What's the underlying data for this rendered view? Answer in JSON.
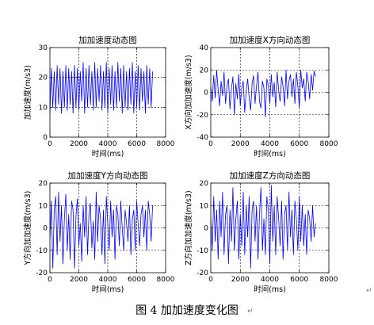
{
  "caption": "图 4  加加速度变化图",
  "return_mark": "↵",
  "chart_data": [
    {
      "type": "line",
      "title": "加加速度动态图",
      "xlabel": "时间(ms)",
      "ylabel": "加加速度(m/s3)",
      "xlim": [
        0,
        8000
      ],
      "ylim": [
        0,
        30
      ],
      "xticks": [
        0,
        2000,
        4000,
        6000,
        8000
      ],
      "yticks": [
        0,
        10,
        20,
        30
      ],
      "grid": true,
      "color": "#0000ff",
      "series": [
        {
          "x": [
            0,
            100,
            200,
            300,
            400,
            500,
            600,
            700,
            800,
            900,
            1000,
            1100,
            1200,
            1300,
            1400,
            1500,
            1600,
            1700,
            1800,
            1900,
            2000,
            2100,
            2200,
            2300,
            2400,
            2500,
            2600,
            2700,
            2800,
            2900,
            3000,
            3100,
            3200,
            3300,
            3400,
            3500,
            3600,
            3700,
            3800,
            3900,
            4000,
            4100,
            4200,
            4300,
            4400,
            4500,
            4600,
            4700,
            4800,
            4900,
            5000,
            5100,
            5200,
            5300,
            5400,
            5500,
            5600,
            5700,
            5800,
            5900,
            6000,
            6100,
            6200,
            6300,
            6400,
            6500,
            6600,
            6700,
            6800,
            6900,
            7000,
            7100
          ],
          "y": [
            8,
            23,
            10,
            22,
            9,
            24,
            11,
            23,
            8,
            22,
            10,
            24,
            9,
            23,
            11,
            22,
            8,
            24,
            10,
            23,
            9,
            22,
            12,
            25,
            8,
            23,
            10,
            24,
            11,
            22,
            9,
            25,
            10,
            23,
            12,
            24,
            9,
            22,
            10,
            25,
            8,
            23,
            11,
            24,
            9,
            22,
            10,
            25,
            12,
            23,
            8,
            24,
            10,
            22,
            9,
            23,
            11,
            25,
            8,
            22,
            10,
            24,
            9,
            23,
            12,
            22,
            8,
            24,
            11,
            23,
            10,
            22
          ]
        }
      ]
    },
    {
      "type": "line",
      "title": "加加速度X方向动态图",
      "xlabel": "时间(ms)",
      "ylabel": "X方向加加速度(m/s3)",
      "xlim": [
        0,
        8000
      ],
      "ylim": [
        -40,
        40
      ],
      "xticks": [
        0,
        2000,
        4000,
        6000,
        8000
      ],
      "yticks": [
        -40,
        -20,
        0,
        20,
        40
      ],
      "grid": true,
      "color": "#0000ff",
      "series": [
        {
          "x": [
            0,
            100,
            200,
            300,
            400,
            500,
            600,
            700,
            800,
            900,
            1000,
            1100,
            1200,
            1300,
            1400,
            1500,
            1600,
            1700,
            1800,
            1900,
            2000,
            2100,
            2200,
            2300,
            2400,
            2500,
            2600,
            2700,
            2800,
            2900,
            3000,
            3100,
            3200,
            3300,
            3400,
            3500,
            3600,
            3700,
            3800,
            3900,
            4000,
            4100,
            4200,
            4300,
            4400,
            4500,
            4600,
            4700,
            4800,
            4900,
            5000,
            5100,
            5200,
            5300,
            5400,
            5500,
            5600,
            5700,
            5800,
            5900,
            6000,
            6100,
            6200,
            6300,
            6400,
            6500,
            6600,
            6700,
            6800,
            6900,
            7000,
            7100
          ],
          "y": [
            5,
            -8,
            15,
            -5,
            20,
            2,
            -12,
            10,
            -3,
            18,
            -10,
            6,
            12,
            -15,
            3,
            14,
            -20,
            8,
            -6,
            16,
            -12,
            4,
            10,
            -18,
            2,
            12,
            -5,
            -16,
            8,
            15,
            -10,
            6,
            18,
            -8,
            -14,
            10,
            4,
            -22,
            12,
            6,
            -10,
            16,
            -4,
            9,
            -13,
            18,
            2,
            -8,
            14,
            5,
            -12,
            20,
            -6,
            10,
            16,
            -4,
            12,
            -10,
            18,
            6,
            -14,
            20,
            4,
            12,
            -8,
            18,
            10,
            -6,
            16,
            2,
            19,
            14
          ]
        }
      ]
    },
    {
      "type": "line",
      "title": "加加速度Y方向动态图",
      "xlabel": "时间(ms)",
      "ylabel": "Y方向加加速度(m/s3)",
      "xlim": [
        0,
        8000
      ],
      "ylim": [
        -20,
        20
      ],
      "xticks": [
        0,
        2000,
        4000,
        6000,
        8000
      ],
      "yticks": [
        -20,
        -10,
        0,
        10,
        20
      ],
      "grid": true,
      "color": "#0000ff",
      "series": [
        {
          "x": [
            0,
            100,
            200,
            300,
            400,
            500,
            600,
            700,
            800,
            900,
            1000,
            1100,
            1200,
            1300,
            1400,
            1500,
            1600,
            1700,
            1800,
            1900,
            2000,
            2100,
            2200,
            2300,
            2400,
            2500,
            2600,
            2700,
            2800,
            2900,
            3000,
            3100,
            3200,
            3300,
            3400,
            3500,
            3600,
            3700,
            3800,
            3900,
            4000,
            4100,
            4200,
            4300,
            4400,
            4500,
            4600,
            4700,
            4800,
            4900,
            5000,
            5100,
            5200,
            5300,
            5400,
            5500,
            5600,
            5700,
            5800,
            5900,
            6000,
            6100,
            6200,
            6300,
            6400,
            6500,
            6600,
            6700,
            6800,
            6900,
            7000,
            7100
          ],
          "y": [
            -5,
            12,
            -18,
            8,
            14,
            -12,
            16,
            -6,
            10,
            -16,
            4,
            15,
            -10,
            6,
            -14,
            12,
            8,
            -18,
            5,
            13,
            -8,
            2,
            -15,
            10,
            -4,
            14,
            -12,
            6,
            11,
            -9,
            3,
            -14,
            16,
            -6,
            10,
            4,
            -12,
            8,
            -16,
            14,
            2,
            -10,
            12,
            -4,
            8,
            -14,
            10,
            6,
            -8,
            12,
            0,
            -10,
            8,
            2,
            -6,
            10,
            -12,
            4,
            8,
            -10,
            12,
            2,
            -8,
            6,
            10,
            -4,
            8,
            -10,
            12,
            6,
            -6,
            10
          ]
        }
      ]
    },
    {
      "type": "line",
      "title": "加加速度Z方向动态图",
      "xlabel": "时间(ms)",
      "ylabel": "Z方向加加速度(m/s3)",
      "xlim": [
        0,
        8000
      ],
      "ylim": [
        -20,
        20
      ],
      "xticks": [
        0,
        2000,
        4000,
        6000,
        8000
      ],
      "yticks": [
        -20,
        -10,
        0,
        10,
        20
      ],
      "grid": true,
      "color": "#0000ff",
      "series": [
        {
          "x": [
            0,
            100,
            200,
            300,
            400,
            500,
            600,
            700,
            800,
            900,
            1000,
            1100,
            1200,
            1300,
            1400,
            1500,
            1600,
            1700,
            1800,
            1900,
            2000,
            2100,
            2200,
            2300,
            2400,
            2500,
            2600,
            2700,
            2800,
            2900,
            3000,
            3100,
            3200,
            3300,
            3400,
            3500,
            3600,
            3700,
            3800,
            3900,
            4000,
            4100,
            4200,
            4300,
            4400,
            4500,
            4600,
            4700,
            4800,
            4900,
            5000,
            5100,
            5200,
            5300,
            5400,
            5500,
            5600,
            5700,
            5800,
            5900,
            6000,
            6100,
            6200,
            6300,
            6400,
            6500,
            6600,
            6700,
            6800,
            6900,
            7000,
            7100
          ],
          "y": [
            4,
            -10,
            14,
            -6,
            8,
            -14,
            12,
            -4,
            16,
            -12,
            6,
            10,
            -16,
            8,
            -6,
            18,
            -10,
            4,
            12,
            -14,
            6,
            -8,
            16,
            -12,
            10,
            -4,
            14,
            -18,
            8,
            12,
            -6,
            10,
            -14,
            6,
            18,
            -10,
            4,
            -12,
            14,
            8,
            -16,
            19,
            -6,
            10,
            -12,
            14,
            4,
            -8,
            12,
            -14,
            6,
            10,
            -10,
            16,
            -4,
            8,
            -12,
            12,
            4,
            -10,
            14,
            -6,
            10,
            -8,
            6,
            -12,
            8,
            4,
            -6,
            10,
            -4,
            2
          ]
        }
      ]
    }
  ]
}
